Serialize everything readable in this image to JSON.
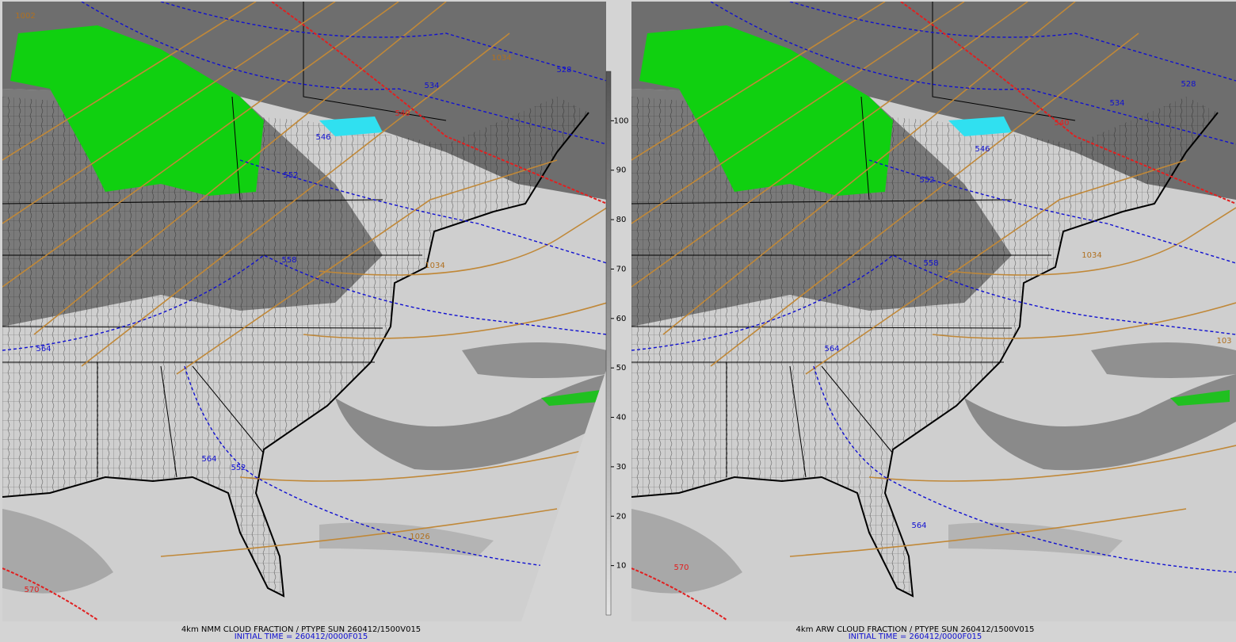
{
  "panels": [
    {
      "caption": "4km NMM CLOUD FRACTION / PTYPE SUN 260412/1500V015",
      "init_time": "INITIAL TIME = 260412/0000F015",
      "contour_labels": [
        {
          "text": "1002",
          "color": "#b07020"
        },
        {
          "text": "1034",
          "color": "#b07020"
        },
        {
          "text": "528",
          "color": "#1010d0"
        },
        {
          "text": "534",
          "color": "#1010d0"
        },
        {
          "text": "540",
          "color": "#e02020"
        },
        {
          "text": "546",
          "color": "#1010d0"
        },
        {
          "text": "552",
          "color": "#1010d0"
        },
        {
          "text": "558",
          "color": "#1010d0"
        },
        {
          "text": "1034",
          "color": "#b07020"
        },
        {
          "text": "564",
          "color": "#1010d0"
        },
        {
          "text": "564",
          "color": "#1010d0"
        },
        {
          "text": "552",
          "color": "#1010d0"
        },
        {
          "text": "1026",
          "color": "#b07020"
        },
        {
          "text": "570",
          "color": "#e02020"
        }
      ]
    },
    {
      "caption": "4km ARW CLOUD FRACTION / PTYPE SUN 260412/1500V015",
      "init_time": "INITIAL TIME = 260412/0000F015",
      "contour_labels": [
        {
          "text": "528",
          "color": "#1010d0"
        },
        {
          "text": "534",
          "color": "#1010d0"
        },
        {
          "text": "540",
          "color": "#e02020"
        },
        {
          "text": "546",
          "color": "#1010d0"
        },
        {
          "text": "552",
          "color": "#1010d0"
        },
        {
          "text": "558",
          "color": "#1010d0"
        },
        {
          "text": "1034",
          "color": "#b07020"
        },
        {
          "text": "564",
          "color": "#1010d0"
        },
        {
          "text": "564",
          "color": "#1010d0"
        },
        {
          "text": "570",
          "color": "#e02020"
        },
        {
          "text": "103",
          "color": "#b07020"
        }
      ]
    }
  ],
  "colorbar": {
    "lim": [
      0,
      110
    ],
    "ticks": [
      10,
      20,
      30,
      40,
      50,
      60,
      70,
      80,
      90,
      100
    ]
  }
}
